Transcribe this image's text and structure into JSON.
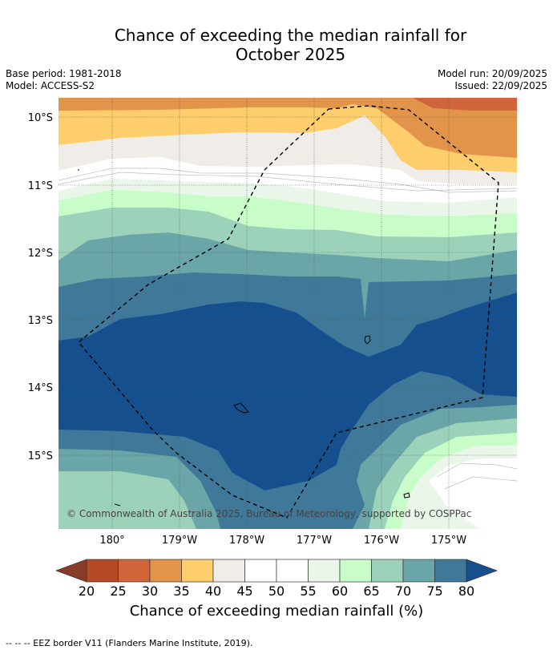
{
  "title_line1": "Chance of exceeding the median rainfall for",
  "title_line2": "October 2025",
  "meta": {
    "base_period": "Base period: 1981-2018",
    "model": "Model: ACCESS-S2",
    "model_run": "Model run: 20/09/2025",
    "issued": "Issued: 22/09/2025"
  },
  "axes": {
    "lat_labels": [
      "10°S",
      "11°S",
      "12°S",
      "13°S",
      "14°S",
      "15°S"
    ],
    "lon_labels": [
      "180°",
      "179°W",
      "178°W",
      "177°W",
      "176°W",
      "175°W"
    ]
  },
  "copyright": "© Commonwealth of Australia 2025, Bureau of Meteorology, supported by COSPPac",
  "colorbar": {
    "ticks": [
      "20",
      "25",
      "30",
      "35",
      "40",
      "45",
      "50",
      "55",
      "60",
      "65",
      "70",
      "75",
      "80"
    ],
    "label": "Chance of exceeding median rainfall (%)"
  },
  "footnote": "--  --  -- EEZ border V11 (Flanders Marine Institute, 2019).",
  "colors": {
    "c20_25": "#b44a26",
    "c25_30": "#d0643a",
    "c30_35": "#e2944a",
    "c35_40": "#fecd6c",
    "c40_45": "#f0ede8",
    "c45_55": "#ffffff",
    "c55_60": "#eaf6ea",
    "c60_65": "#c8fcc8",
    "c65_70": "#9bd2b9",
    "c70_75": "#6aa6a8",
    "c75_80": "#3f7898",
    "c80": "#154f8e"
  }
}
